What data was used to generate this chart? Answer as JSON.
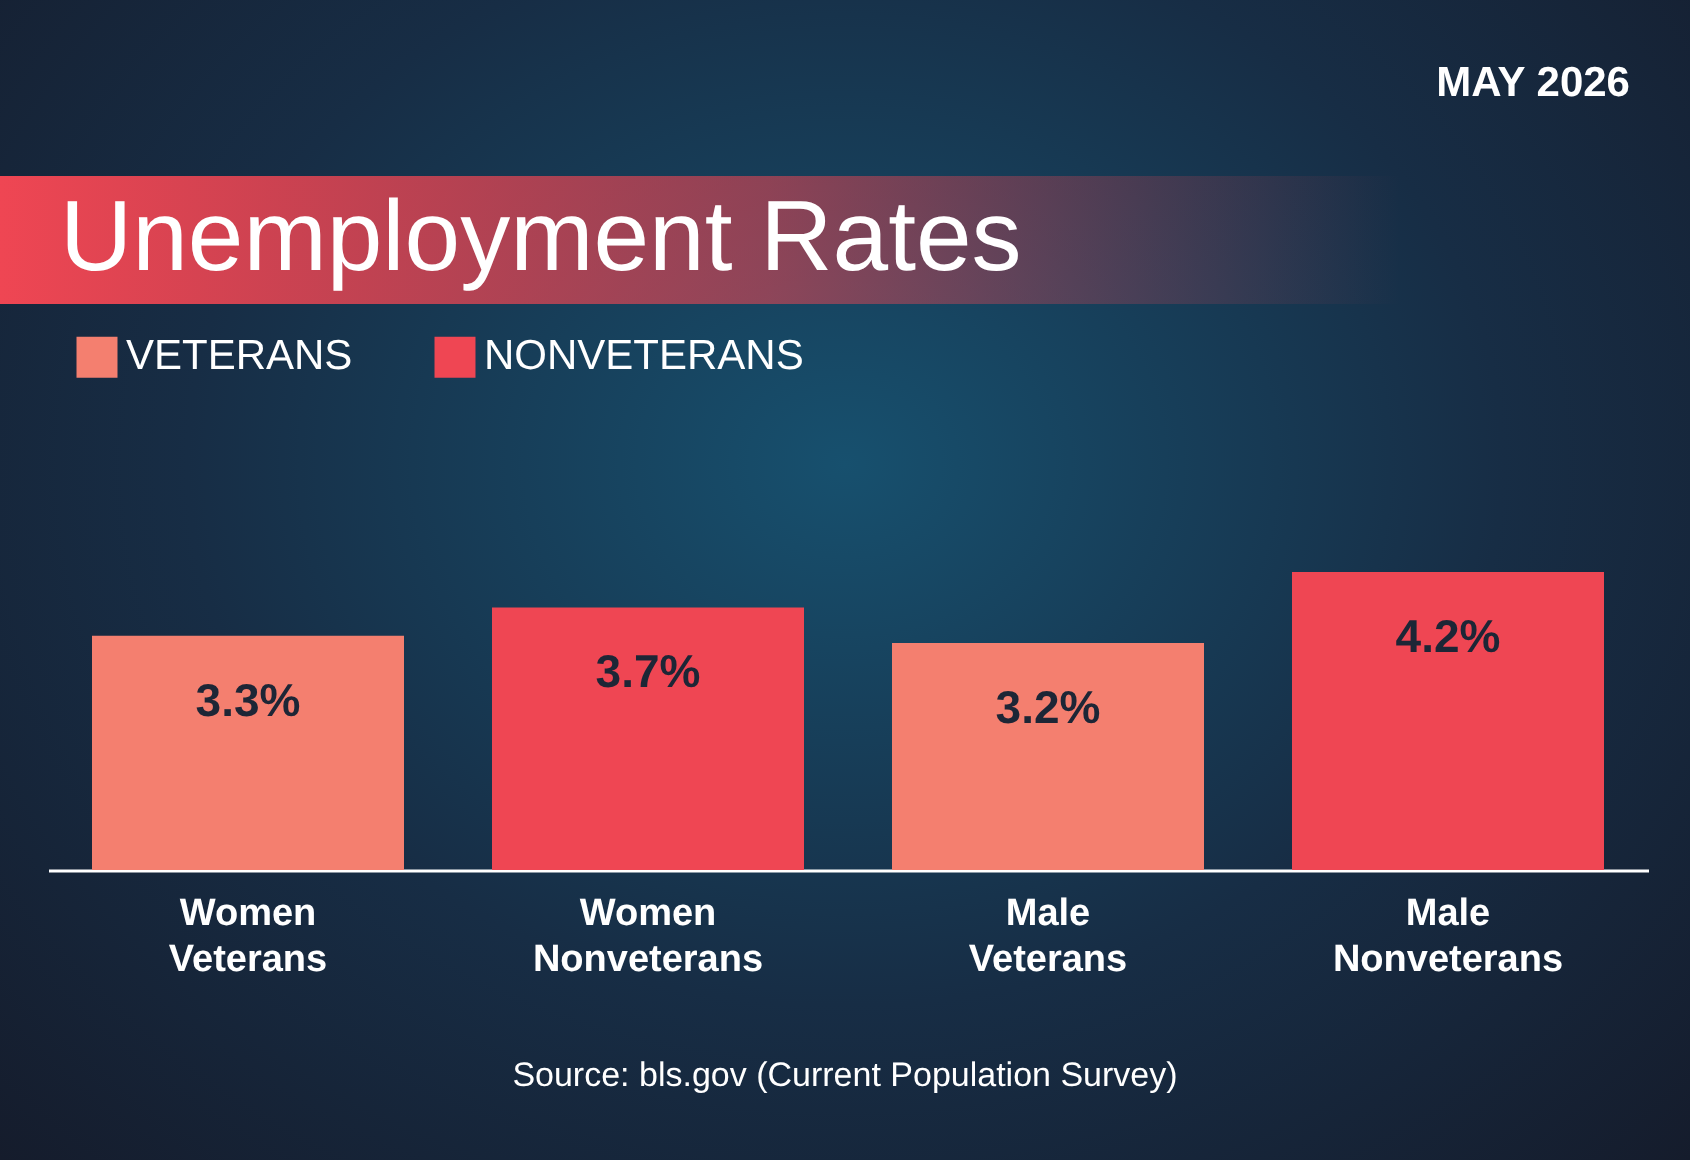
{
  "chart_data": {
    "type": "bar",
    "title": "Unemployment Rates",
    "subtitle": "MAY 2026",
    "categories": [
      "Women Veterans",
      "Women Nonveterans",
      "Male Veterans",
      "Male Nonveterans"
    ],
    "series": [
      {
        "name": "VETERANS",
        "color": "#f47f6f",
        "values": [
          3.3,
          null,
          3.2,
          null
        ],
        "value_labels": [
          "3.3%",
          null,
          "3.2%",
          null
        ]
      },
      {
        "name": "NONVETERANS",
        "color": "#ef4653",
        "values": [
          null,
          3.7,
          null,
          4.2
        ],
        "value_labels": [
          null,
          "3.7%",
          null,
          "4.2%"
        ]
      }
    ],
    "legend": "top left",
    "annotations": [
      "Source: bls.gov (Current Population Survey)"
    ]
  }
}
